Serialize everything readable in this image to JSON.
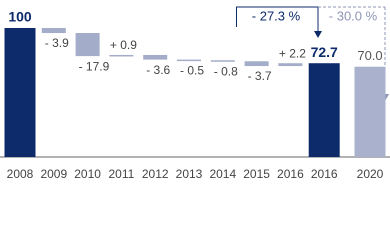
{
  "chart_data": {
    "type": "waterfall",
    "categories": [
      "2008",
      "2009",
      "2010",
      "2011",
      "2012",
      "2013",
      "2014",
      "2015",
      "2016",
      "2016",
      "2020"
    ],
    "values": [
      100,
      -3.9,
      -17.9,
      0.9,
      -3.6,
      -0.5,
      -0.8,
      -3.7,
      2.2,
      72.7,
      70.0
    ],
    "value_labels": [
      "100",
      "- 3.9",
      "- 17.9",
      "+ 0.9",
      "- 3.6",
      "- 0.5",
      "- 0.8",
      "- 3.7",
      "+ 2.2",
      "72.7",
      "70.0"
    ],
    "bar_kinds": [
      "total",
      "delta",
      "delta",
      "delta",
      "delta",
      "delta",
      "delta",
      "delta",
      "delta",
      "total",
      "total"
    ],
    "colors": [
      "#0d2a6b",
      "#a3acc9",
      "#a3acc9",
      "#a3acc9",
      "#a3acc9",
      "#a3acc9",
      "#a3acc9",
      "#a3acc9",
      "#a3acc9",
      "#0d2a6b",
      "#a9b1cc"
    ],
    "ylim": [
      0,
      100
    ],
    "annotations": [
      "- 27.3 %",
      "- 30.0 %"
    ]
  }
}
